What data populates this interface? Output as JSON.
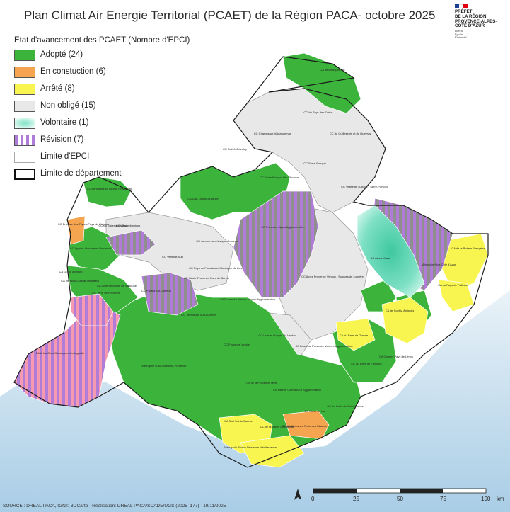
{
  "title": "Plan Climat Air Energie Territorial (PCAET) de la Région PACA- octobre 2025",
  "logo": {
    "lines": [
      "PRÉFET",
      "DE LA RÉGION",
      "PROVENCE-ALPES-",
      "CÔTE D'AZUR"
    ],
    "motto": [
      "Liberté",
      "Égalité",
      "Fraternité"
    ]
  },
  "legend": {
    "title": "Etat d'avancement des PCAET (Nombre d'EPCI)",
    "items": [
      {
        "label": "Adopté (24)",
        "color": "#3cb43c"
      },
      {
        "label": "En constuction (6)",
        "color": "#f5a450"
      },
      {
        "label": "Arrêté (8)",
        "color": "#f8f550"
      },
      {
        "label": "Non obligé (15)",
        "color": "#e8e8e8"
      },
      {
        "label": "Volontaire (1)",
        "color": "#7ee0c4"
      },
      {
        "label": "Révision (7)",
        "color": "#b07cd8"
      },
      {
        "label": "Limite d'EPCI",
        "color": "#ffffff"
      },
      {
        "label": "Limite de département",
        "color": "#ffffff"
      }
    ]
  },
  "regions": [
    {
      "name": "CA de Briançonnais"
    },
    {
      "name": "CC du Pays des Ecrins"
    },
    {
      "name": "CC Champsaur-Valgaudemar"
    },
    {
      "name": "CC du Guillestrois et du Queyras"
    },
    {
      "name": "CC Buëch-Dévoluy"
    },
    {
      "name": "CC Serre-Ponçon"
    },
    {
      "name": "CA Gap-Tallard-Durance"
    },
    {
      "name": "CC Serre-Ponçon Val d'Avance"
    },
    {
      "name": "CC Vallée de l'Ubaye - Serre-Ponçon"
    },
    {
      "name": "CC Baronnies en Drôme Provençale"
    },
    {
      "name": "CC du Sisteronais-Buëch"
    },
    {
      "name": "CC Enclave des Papes-Pays de Grignan"
    },
    {
      "name": "CC Vaison Ventoux"
    },
    {
      "name": "CC Jabron-Lure-Vançon-Durance"
    },
    {
      "name": "CA Provence Alpes Agglomération"
    },
    {
      "name": "CC Aygues-Ouvèze en Provence"
    },
    {
      "name": "CC Ventoux Sud"
    },
    {
      "name": "CC Pays de Forcalquier Montagne de Lure"
    },
    {
      "name": "CA Ventoux-Comtat-Venaissin"
    },
    {
      "name": "CC Alpes Provence Verdon - Sources de Lumière"
    },
    {
      "name": "CC Alpes d'Azur"
    },
    {
      "name": "Métropole Nice Côte d'Azur"
    },
    {
      "name": "CA de la Riviera Française"
    },
    {
      "name": "CA du Pays de Paillons"
    },
    {
      "name": "CC Haute-Provence Pays de Banon"
    },
    {
      "name": "CA Grand Avignon"
    },
    {
      "name": "CC Pays d'Apt-Luberon"
    },
    {
      "name": "CA Durance-Luberon-Verdon Agglomération"
    },
    {
      "name": "CC Lacs et Gorges du Verdon"
    },
    {
      "name": "CA de Sophia Antipolis"
    },
    {
      "name": "CA du Pays de Grasse"
    },
    {
      "name": "CA Arles-Crau-Camargue-Montagnette"
    },
    {
      "name": "CC Terre de Provence"
    },
    {
      "name": "CA Luberon Monts de Vaucluse"
    },
    {
      "name": "CC Territoriale Sud-Luberon"
    },
    {
      "name": "CC Provence Verdon"
    },
    {
      "name": "CA Dracénie Provence Verdon Agglomération"
    },
    {
      "name": "CC du Pays de Fayence"
    },
    {
      "name": "CA Cannes Pays de Lérins"
    },
    {
      "name": "Métropole d'Aix-Marseille-Provence"
    },
    {
      "name": "CA de la Provence Verte"
    },
    {
      "name": "CA Estérel Côte d'Azur Agglomération"
    },
    {
      "name": "CC Cœur du Var"
    },
    {
      "name": "CC du Golfe de Saint-Tropez"
    },
    {
      "name": "CA Sud Sainte Baume"
    },
    {
      "name": "CC de la Vallée du Gapeau"
    },
    {
      "name": "CC Méditerranée Porte des Maures"
    },
    {
      "name": "Métropole Toulon-Provence-Méditerranée"
    }
  ],
  "scale": {
    "ticks": [
      "0",
      "25",
      "50",
      "75",
      "100"
    ],
    "unit": "km"
  },
  "source": "SOURCE : DREAL PACA, IGN© BDCarto - Réalisation: DREAL PACA/SCADE/UGS (2025_177) - 19/11/2025"
}
